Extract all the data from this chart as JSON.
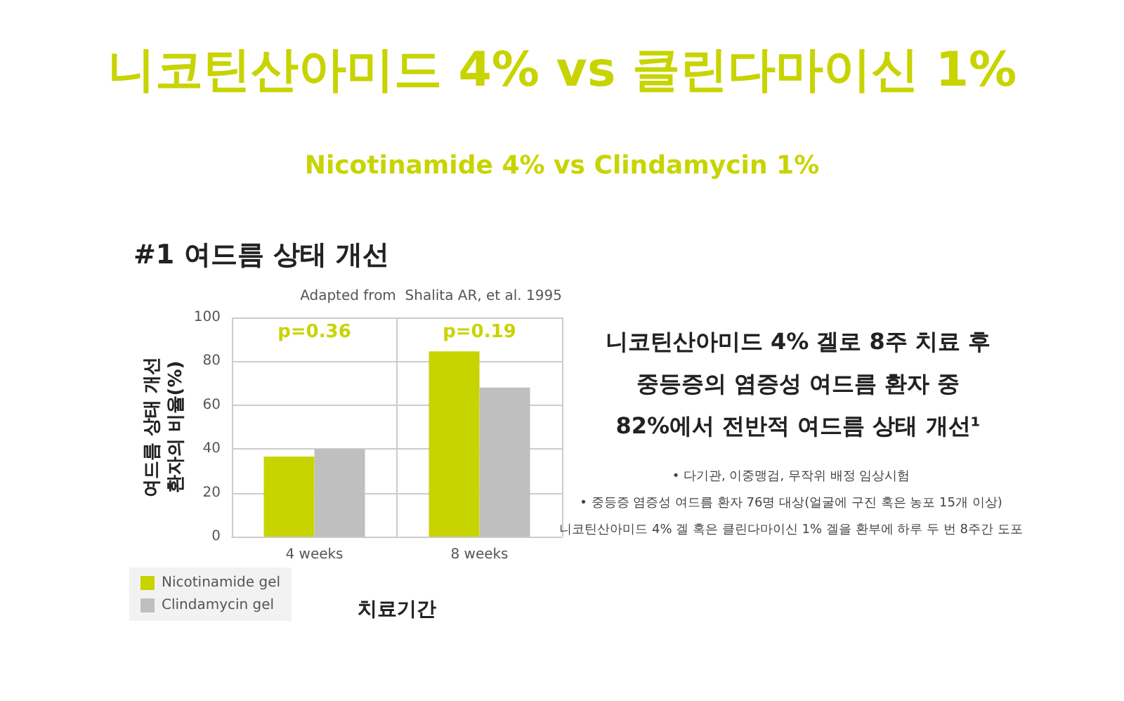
{
  "chart_data": {
    "type": "bar",
    "title": "니코틴산아미드 4% vs 클린다마이신 1%",
    "subtitle": "Nicotinamide 4% vs Clindamycin 1%",
    "xlabel": "치료기간",
    "ylabel": "여드름 상태 개선\n환자의 비율(%)",
    "categories": [
      "4 weeks",
      "8 weeks"
    ],
    "series": [
      {
        "name": "Nicotinamide gel",
        "color": "#c8d400",
        "values": [
          36.5,
          84.5
        ]
      },
      {
        "name": "Clindamycin gel",
        "color": "#bfbfbf",
        "values": [
          40,
          68
        ]
      }
    ],
    "ylim": [
      0,
      100
    ],
    "yticks": [
      0,
      20,
      40,
      60,
      80,
      100
    ],
    "grid": true,
    "legend": "bottom left",
    "annotations": [
      "#1 여드름 상태 개선",
      "Adapted from  Shalita AR, et al. 1995",
      "p=0.36",
      "p=0.19",
      "니코틴산아미드 4% 겔로 8주 치료 후\n중등증의 염증성 여드름 환자 중\n82%에서 전반적 여드름 상태 개선¹",
      "• 다기관, 이중맹검, 무작위 배정 임상시험\n• 중등증 염증성 여드름 환자 76명 대상(얼굴에 구진 혹은 농포 15개 이상)\n니코틴산아미드 4% 겔 혹은 클린다마이신 1% 겔을 환부에 하루 두 번 8주간 도포"
    ]
  }
}
